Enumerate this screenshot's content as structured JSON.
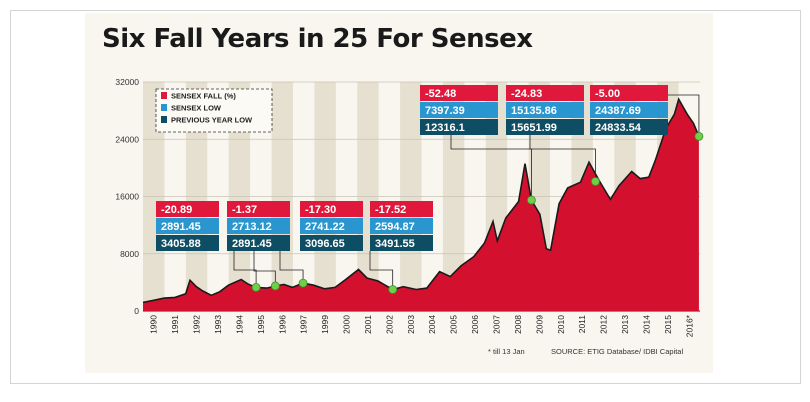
{
  "chart_data": {
    "type": "area",
    "title": "Six Fall Years in 25 For Sensex",
    "ylim": [
      0,
      32000
    ],
    "y_ticks": [
      "0",
      "8000",
      "16000",
      "24000",
      "32000"
    ],
    "year_labels": [
      "1990",
      "1991",
      "1992",
      "1993",
      "1994",
      "1995",
      "1996",
      "1997",
      "1999",
      "2000",
      "2001",
      "2002",
      "2003",
      "2004",
      "2005",
      "2006",
      "2007",
      "2008",
      "2009",
      "2010",
      "2011",
      "2012",
      "2013",
      "2014",
      "2015",
      "2016*"
    ],
    "legend": [
      {
        "label": "SENSEX FALL (%)",
        "color": "#e0193c"
      },
      {
        "label": "SENSEX LOW",
        "color": "#2a96d0"
      },
      {
        "label": "PREVIOUS YEAR LOW",
        "color": "#0d4e64"
      }
    ],
    "series": [
      {
        "values": [
          {
            "x": 1990.0,
            "y": 1200
          },
          {
            "x": 1990.5,
            "y": 1500
          },
          {
            "x": 1991.0,
            "y": 1800
          },
          {
            "x": 1991.5,
            "y": 1900
          },
          {
            "x": 1992.0,
            "y": 2400
          },
          {
            "x": 1992.2,
            "y": 4300
          },
          {
            "x": 1992.5,
            "y": 3400
          },
          {
            "x": 1992.8,
            "y": 2800
          },
          {
            "x": 1993.2,
            "y": 2200
          },
          {
            "x": 1993.6,
            "y": 2700
          },
          {
            "x": 1994.0,
            "y": 3600
          },
          {
            "x": 1994.6,
            "y": 4400
          },
          {
            "x": 1994.9,
            "y": 3800
          },
          {
            "x": 1995.3,
            "y": 3300
          },
          {
            "x": 1995.8,
            "y": 3200
          },
          {
            "x": 1996.2,
            "y": 3500
          },
          {
            "x": 1996.6,
            "y": 3700
          },
          {
            "x": 1997.0,
            "y": 3300
          },
          {
            "x": 1997.5,
            "y": 3900
          },
          {
            "x": 1998.0,
            "y": 3600
          },
          {
            "x": 1998.5,
            "y": 3100
          },
          {
            "x": 1999.0,
            "y": 3300
          },
          {
            "x": 1999.5,
            "y": 4400
          },
          {
            "x": 2000.1,
            "y": 5800
          },
          {
            "x": 2000.5,
            "y": 4600
          },
          {
            "x": 2001.0,
            "y": 4200
          },
          {
            "x": 2001.7,
            "y": 3000
          },
          {
            "x": 2002.2,
            "y": 3400
          },
          {
            "x": 2002.8,
            "y": 3000
          },
          {
            "x": 2003.3,
            "y": 3200
          },
          {
            "x": 2003.9,
            "y": 5500
          },
          {
            "x": 2004.4,
            "y": 4800
          },
          {
            "x": 2004.9,
            "y": 6300
          },
          {
            "x": 2005.5,
            "y": 7600
          },
          {
            "x": 2006.0,
            "y": 9500
          },
          {
            "x": 2006.4,
            "y": 12500
          },
          {
            "x": 2006.6,
            "y": 9800
          },
          {
            "x": 2007.0,
            "y": 13000
          },
          {
            "x": 2007.6,
            "y": 15300
          },
          {
            "x": 2007.9,
            "y": 20600
          },
          {
            "x": 2008.2,
            "y": 15500
          },
          {
            "x": 2008.6,
            "y": 13500
          },
          {
            "x": 2008.9,
            "y": 8700
          },
          {
            "x": 2009.1,
            "y": 8500
          },
          {
            "x": 2009.5,
            "y": 15000
          },
          {
            "x": 2009.9,
            "y": 17200
          },
          {
            "x": 2010.5,
            "y": 18000
          },
          {
            "x": 2010.9,
            "y": 20800
          },
          {
            "x": 2011.4,
            "y": 18100
          },
          {
            "x": 2011.9,
            "y": 15600
          },
          {
            "x": 2012.3,
            "y": 17500
          },
          {
            "x": 2012.9,
            "y": 19500
          },
          {
            "x": 2013.3,
            "y": 18500
          },
          {
            "x": 2013.7,
            "y": 18700
          },
          {
            "x": 2014.0,
            "y": 21000
          },
          {
            "x": 2014.5,
            "y": 25500
          },
          {
            "x": 2014.9,
            "y": 27500
          },
          {
            "x": 2015.1,
            "y": 29600
          },
          {
            "x": 2015.5,
            "y": 27500
          },
          {
            "x": 2015.8,
            "y": 26200
          },
          {
            "x": 2016.05,
            "y": 24400
          }
        ]
      }
    ],
    "fall_years": [
      {
        "year": 1995.3,
        "fall": "-20.89",
        "low": "2891.45",
        "prev_low": "3405.88"
      },
      {
        "year": 1996.2,
        "fall": "-1.37",
        "low": "2713.12",
        "prev_low": "2891.45"
      },
      {
        "year": 1997.5,
        "fall": "-17.30",
        "low": "2741.22",
        "prev_low": "3096.65"
      },
      {
        "year": 2001.7,
        "fall": "-17.52",
        "low": "2594.87",
        "prev_low": "3491.55"
      },
      {
        "year": 2008.2,
        "fall": "-52.48",
        "low": "7397.39",
        "prev_low": "12316.1"
      },
      {
        "year": 2011.2,
        "fall": "-24.83",
        "low": "15135.86",
        "prev_low": "15651.99"
      },
      {
        "year": 2016.05,
        "fall": "-5.00",
        "low": "24387.69",
        "prev_low": "24833.54"
      }
    ],
    "footnote": "* till 13 Jan",
    "source": "SOURCE: ETIG Database/ IDBI Capital"
  }
}
